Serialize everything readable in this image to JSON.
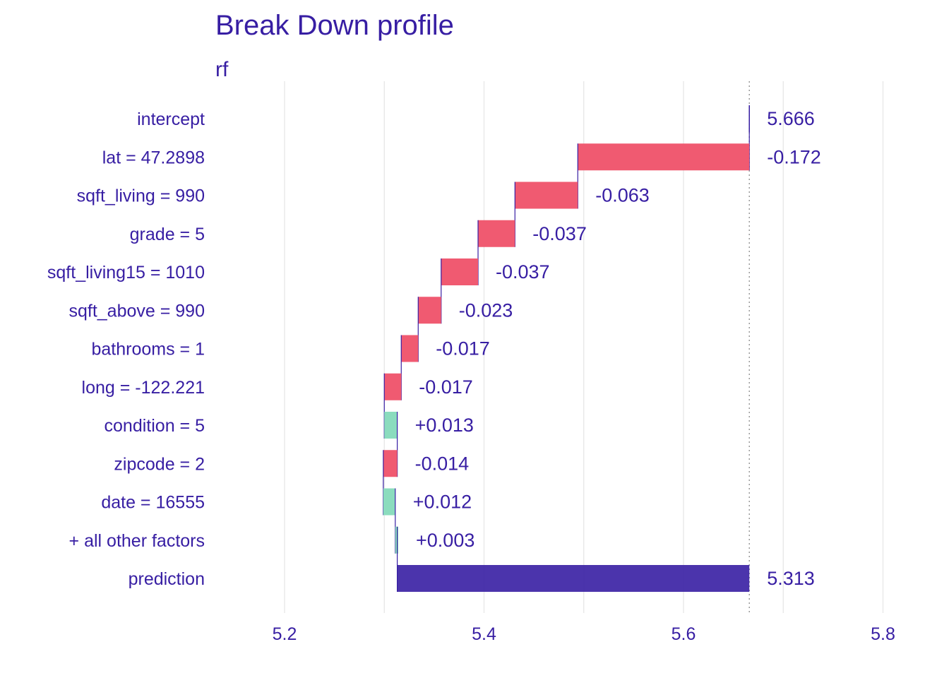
{
  "chart_data": {
    "type": "bar",
    "subtype": "waterfall",
    "title": "Break Down profile",
    "subtitle": "rf",
    "xlabel": "",
    "ylabel": "",
    "xlim": [
      5.15,
      5.8
    ],
    "x_ticks": [
      5.2,
      5.4,
      5.6,
      5.8
    ],
    "x_tick_labels": [
      "5.2",
      "5.4",
      "5.6",
      "5.8"
    ],
    "grid": "vertical",
    "legend": "none",
    "intercept_value": 5.666,
    "colors": {
      "positive": "#8bdcbe",
      "negative": "#f05a71",
      "prediction": "#371ea3",
      "text": "#371ea3",
      "grid": "#e6e6e6",
      "connector": "#371ea3",
      "reference_line": "#999999"
    },
    "rows": [
      {
        "label": "intercept",
        "value": 5.666,
        "contribution": 0,
        "value_label": "5.666",
        "kind": "intercept"
      },
      {
        "label": "lat = 47.2898",
        "contribution": -0.172,
        "value_label": "-0.172",
        "kind": "negative"
      },
      {
        "label": "sqft_living = 990",
        "contribution": -0.063,
        "value_label": "-0.063",
        "kind": "negative"
      },
      {
        "label": "grade = 5",
        "contribution": -0.037,
        "value_label": "-0.037",
        "kind": "negative"
      },
      {
        "label": "sqft_living15 = 1010",
        "contribution": -0.037,
        "value_label": "-0.037",
        "kind": "negative"
      },
      {
        "label": "sqft_above = 990",
        "contribution": -0.023,
        "value_label": "-0.023",
        "kind": "negative"
      },
      {
        "label": "bathrooms = 1",
        "contribution": -0.017,
        "value_label": "-0.017",
        "kind": "negative"
      },
      {
        "label": "long = -122.221",
        "contribution": -0.017,
        "value_label": "-0.017",
        "kind": "negative"
      },
      {
        "label": "condition = 5",
        "contribution": 0.013,
        "value_label": "+0.013",
        "kind": "positive"
      },
      {
        "label": "zipcode = 2",
        "contribution": -0.014,
        "value_label": "-0.014",
        "kind": "negative"
      },
      {
        "label": "date = 16555",
        "contribution": 0.012,
        "value_label": "+0.012",
        "kind": "positive"
      },
      {
        "label": "+ all other factors",
        "contribution": 0.003,
        "value_label": "+0.003",
        "kind": "positive"
      },
      {
        "label": "prediction",
        "value": 5.313,
        "contribution": 0,
        "value_label": "5.313",
        "kind": "prediction"
      }
    ]
  }
}
